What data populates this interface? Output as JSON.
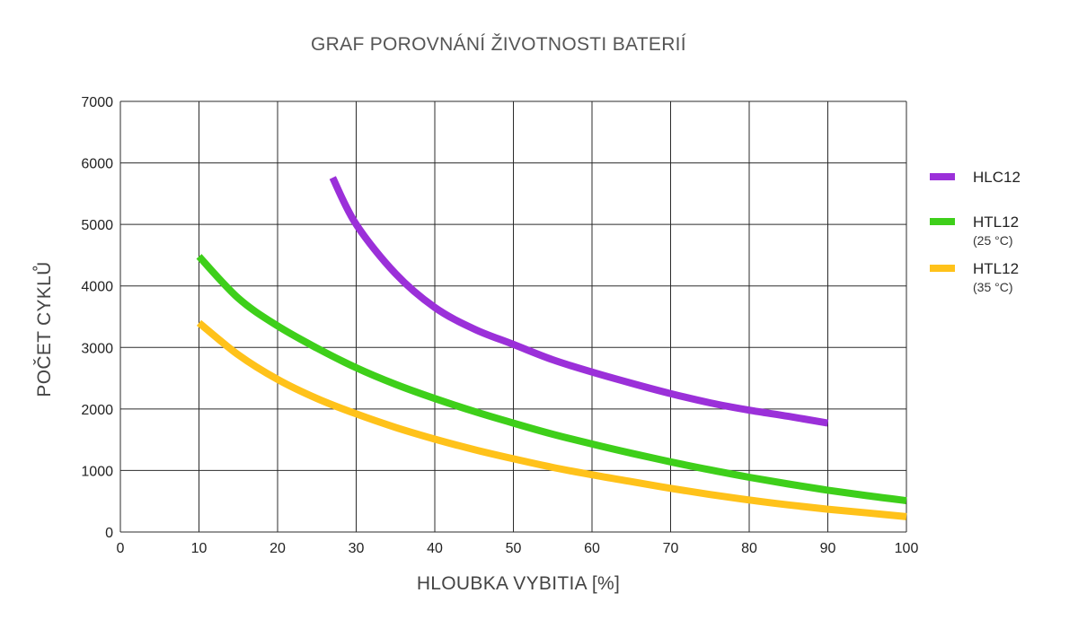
{
  "chart_data": {
    "type": "line",
    "title": "GRAF POROVNÁNÍ ŽIVOTNOSTI BATERIÍ",
    "xlabel": "HLOUBKA VYBITIA [%]",
    "ylabel": "POČET CYKLŮ",
    "xlim": [
      0,
      100
    ],
    "ylim": [
      0,
      7000
    ],
    "x_ticks": [
      "0",
      "10",
      "20",
      "30",
      "40",
      "50",
      "60",
      "70",
      "80",
      "90",
      "100"
    ],
    "y_ticks": [
      "0",
      "1000",
      "2000",
      "3000",
      "4000",
      "5000",
      "6000",
      "7000"
    ],
    "grid": true,
    "legend_position": "right",
    "series": [
      {
        "name": "HLC12",
        "subtitle": "",
        "color": "#9b30d9",
        "x": [
          27,
          30,
          35,
          40,
          45,
          50,
          55,
          60,
          65,
          70,
          75,
          80,
          85,
          90
        ],
        "y": [
          5760,
          5000,
          4200,
          3650,
          3300,
          3050,
          2800,
          2600,
          2420,
          2250,
          2100,
          1980,
          1880,
          1770
        ]
      },
      {
        "name": "HTL12",
        "subtitle": "(25 °C)",
        "color": "#3ecf1a",
        "x": [
          10,
          15,
          20,
          25,
          30,
          35,
          40,
          45,
          50,
          55,
          60,
          65,
          70,
          75,
          80,
          85,
          90,
          95,
          100
        ],
        "y": [
          4480,
          3800,
          3350,
          2990,
          2670,
          2400,
          2170,
          1960,
          1770,
          1590,
          1430,
          1280,
          1140,
          1010,
          890,
          780,
          680,
          590,
          510
        ]
      },
      {
        "name": "HTL12",
        "subtitle": "(35 °C)",
        "color": "#ffc21a",
        "x": [
          10,
          15,
          20,
          25,
          30,
          35,
          40,
          45,
          50,
          55,
          60,
          65,
          70,
          75,
          80,
          85,
          90,
          95,
          100
        ],
        "y": [
          3400,
          2880,
          2480,
          2170,
          1920,
          1700,
          1510,
          1340,
          1190,
          1050,
          930,
          820,
          710,
          610,
          520,
          440,
          370,
          310,
          250
        ]
      }
    ]
  }
}
